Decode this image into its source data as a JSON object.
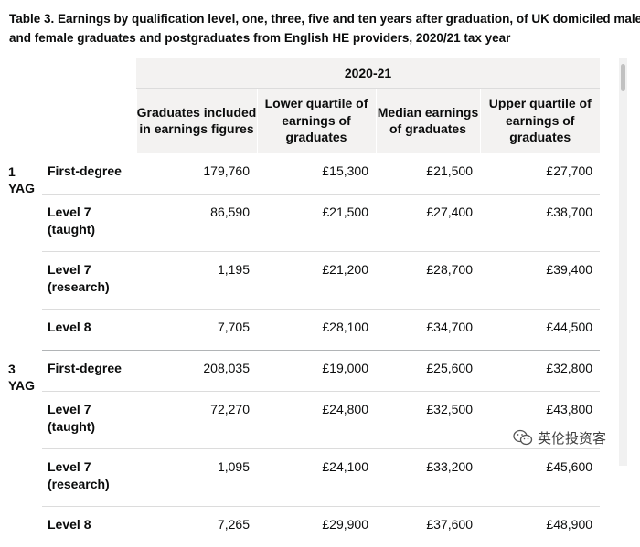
{
  "title": {
    "line1": "Table 3. Earnings by qualification level, one, three, five and ten years after graduation, of UK domiciled male",
    "line2": "and female graduates and postgraduates from English HE providers, 2020/21 tax year"
  },
  "table": {
    "group_header": "2020-21",
    "columns": [
      "Graduates included in earnings figures",
      "Lower quartile of earnings of graduates",
      "Median earnings of graduates",
      "Upper quartile of earnings of graduates"
    ],
    "groups": [
      {
        "yag": [
          "1",
          "YAG"
        ],
        "rows": [
          {
            "qual": [
              "First-degree"
            ],
            "values": [
              "179,760",
              "£15,300",
              "£21,500",
              "£27,700"
            ]
          },
          {
            "qual": [
              "Level 7",
              "(taught)"
            ],
            "values": [
              "86,590",
              "£21,500",
              "£27,400",
              "£38,700"
            ]
          },
          {
            "qual": [
              "Level 7",
              "(research)"
            ],
            "values": [
              "1,195",
              "£21,200",
              "£28,700",
              "£39,400"
            ]
          },
          {
            "qual": [
              "Level 8"
            ],
            "values": [
              "7,705",
              "£28,100",
              "£34,700",
              "£44,500"
            ]
          }
        ]
      },
      {
        "yag": [
          "3",
          "YAG"
        ],
        "rows": [
          {
            "qual": [
              "First-degree"
            ],
            "values": [
              "208,035",
              "£19,000",
              "£25,600",
              "£32,800"
            ]
          },
          {
            "qual": [
              "Level 7",
              "(taught)"
            ],
            "values": [
              "72,270",
              "£24,800",
              "£32,500",
              "£43,800"
            ]
          },
          {
            "qual": [
              "Level 7",
              "(research)"
            ],
            "values": [
              "1,095",
              "£24,100",
              "£33,200",
              "£45,600"
            ]
          },
          {
            "qual": [
              "Level 8"
            ],
            "values": [
              "7,265",
              "£29,900",
              "£37,600",
              "£48,900"
            ]
          }
        ]
      }
    ]
  },
  "watermark": {
    "icon": "wechat-icon",
    "text": "英伦投资客"
  }
}
